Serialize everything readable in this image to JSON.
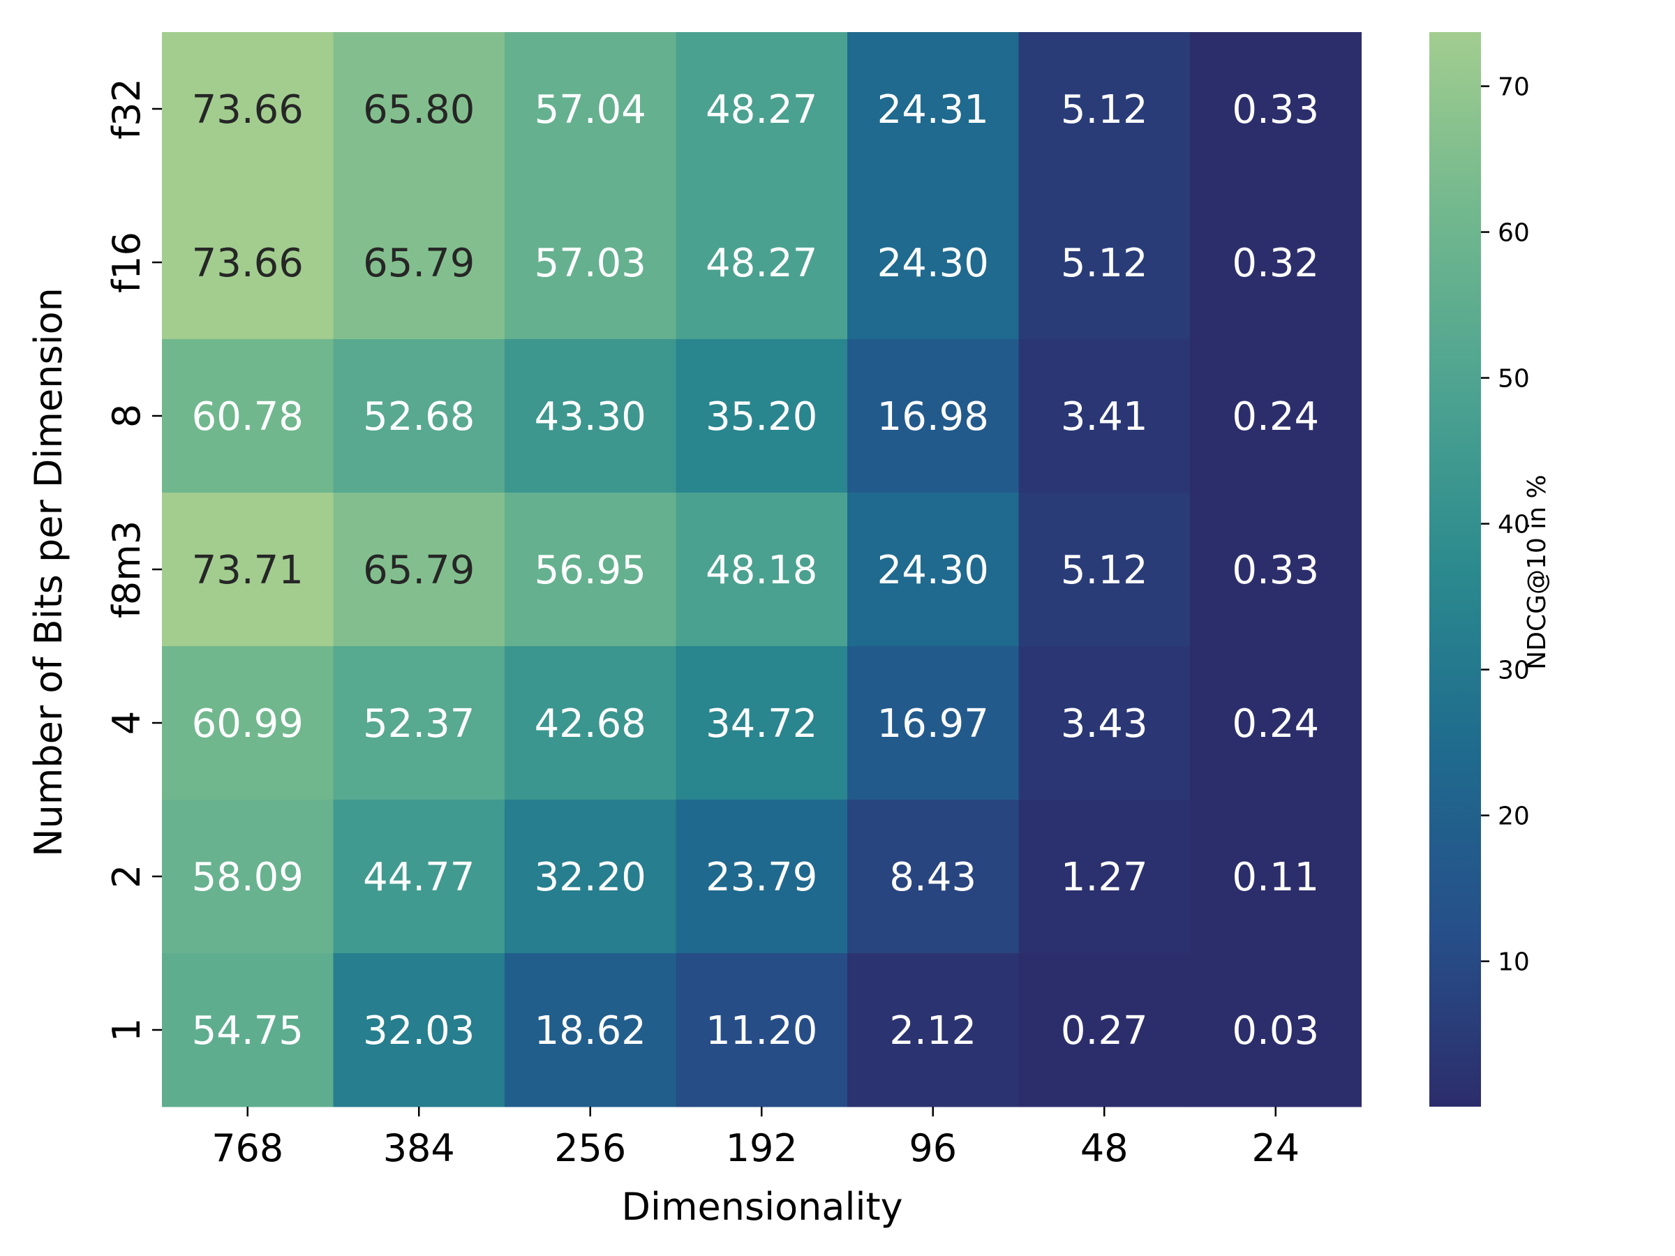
{
  "chart_data": {
    "type": "heatmap",
    "title": "",
    "xlabel": "Dimensionality",
    "ylabel": "Number of Bits per Dimension",
    "x_categories": [
      "768",
      "384",
      "256",
      "192",
      "96",
      "48",
      "24"
    ],
    "y_categories": [
      "f32",
      "f16",
      "8",
      "f8m3",
      "4",
      "2",
      "1"
    ],
    "values": [
      [
        73.66,
        65.8,
        57.04,
        48.27,
        24.31,
        5.12,
        0.33
      ],
      [
        73.66,
        65.79,
        57.03,
        48.27,
        24.3,
        5.12,
        0.32
      ],
      [
        60.78,
        52.68,
        43.3,
        35.2,
        16.98,
        3.41,
        0.24
      ],
      [
        73.71,
        65.79,
        56.95,
        48.18,
        24.3,
        5.12,
        0.33
      ],
      [
        60.99,
        52.37,
        42.68,
        34.72,
        16.97,
        3.43,
        0.24
      ],
      [
        58.09,
        44.77,
        32.2,
        23.79,
        8.43,
        1.27,
        0.11
      ],
      [
        54.75,
        32.03,
        18.62,
        11.2,
        2.12,
        0.27,
        0.03
      ]
    ],
    "cell_labels": [
      [
        "73.66",
        "65.80",
        "57.04",
        "48.27",
        "24.31",
        "5.12",
        "0.33"
      ],
      [
        "73.66",
        "65.79",
        "57.03",
        "48.27",
        "24.30",
        "5.12",
        "0.32"
      ],
      [
        "60.78",
        "52.68",
        "43.30",
        "35.20",
        "16.98",
        "3.41",
        "0.24"
      ],
      [
        "73.71",
        "65.79",
        "56.95",
        "48.18",
        "24.30",
        "5.12",
        "0.33"
      ],
      [
        "60.99",
        "52.37",
        "42.68",
        "34.72",
        "16.97",
        "3.43",
        "0.24"
      ],
      [
        "58.09",
        "44.77",
        "32.20",
        "23.79",
        "8.43",
        "1.27",
        "0.11"
      ],
      [
        "54.75",
        "32.03",
        "18.62",
        "11.20",
        "2.12",
        "0.27",
        "0.03"
      ]
    ],
    "colorbar": {
      "label": "NDCG@10 in %",
      "range": [
        0.03,
        73.71
      ],
      "ticks": [
        "10",
        "20",
        "30",
        "40",
        "50",
        "60",
        "70"
      ],
      "tick_values": [
        10,
        20,
        30,
        40,
        50,
        60,
        70
      ],
      "colormap": [
        "#2c2d6b",
        "#26508a",
        "#1f6b8e",
        "#2b8a8e",
        "#4da390",
        "#72b88e",
        "#a2cd8f"
      ]
    },
    "text_colors": {
      "dark": "#262626",
      "light": "#ffffff"
    },
    "grid": false
  }
}
